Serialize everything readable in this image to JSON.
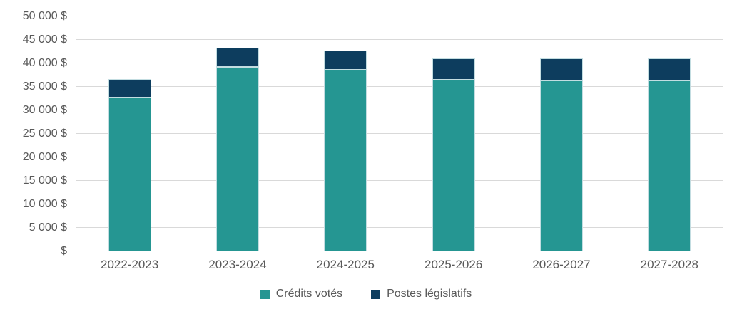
{
  "chart_data": {
    "type": "bar",
    "stacked": true,
    "title": "",
    "xlabel": "",
    "ylabel": "",
    "categories": [
      "2022-2023",
      "2023-2024",
      "2024-2025",
      "2025-2026",
      "2026-2027",
      "2027-2028"
    ],
    "series": [
      {
        "name": "Crédits votés",
        "color": "#259692",
        "values": [
          32800,
          39300,
          38600,
          36500,
          36400,
          36400
        ]
      },
      {
        "name": "Postes législatifs",
        "color": "#0d3d5e",
        "values": [
          3800,
          4100,
          4100,
          4500,
          4700,
          4700
        ]
      }
    ],
    "ylim": [
      0,
      50000
    ],
    "ytick_step": 5000,
    "ytick_labels": [
      "$",
      "5 000 $",
      "10 000 $",
      "15 000 $",
      "20 000 $",
      "25 000 $",
      "30 000 $",
      "35 000 $",
      "40 000 $",
      "45 000 $",
      "50 000 $"
    ],
    "grid": true,
    "legend_position": "bottom"
  },
  "style": {
    "gridline_color": "#d9d9d9",
    "axis_text_color": "#595959",
    "bar_border_color": "#c3dde1",
    "background_color": "#ffffff"
  }
}
